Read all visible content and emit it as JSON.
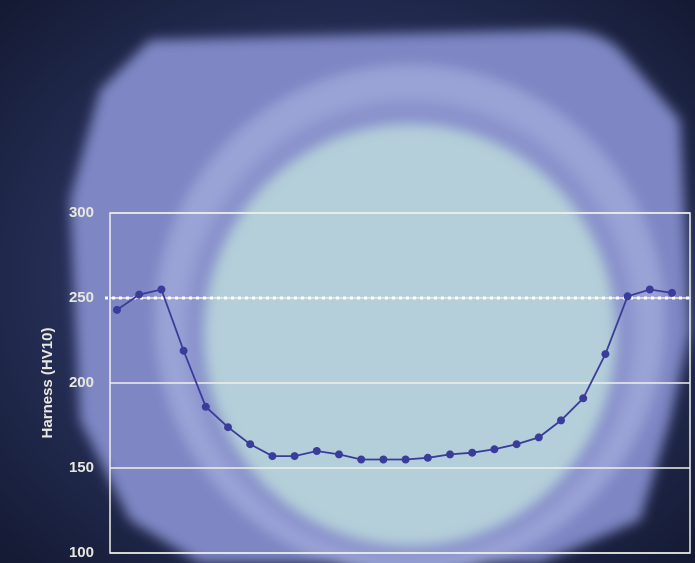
{
  "chart_data": {
    "type": "line",
    "y_label": "Harness (HV10)",
    "categories": [
      null,
      null,
      null,
      null,
      null,
      null,
      null,
      null,
      null,
      null,
      null,
      null,
      null,
      null,
      null,
      null,
      null,
      null,
      null,
      null,
      null,
      null,
      null,
      null,
      null,
      null
    ],
    "series": [
      {
        "color": "#3a3c9c",
        "values": [
          243,
          252,
          255,
          219,
          186,
          174,
          164,
          157,
          157,
          160,
          158,
          155,
          155,
          155,
          156,
          158,
          159,
          161,
          164,
          168,
          178,
          191,
          217,
          251,
          255,
          253
        ]
      }
    ],
    "reference_line": 250,
    "ylim": [
      100,
      300
    ],
    "yticks": [
      100,
      150,
      200,
      250,
      300
    ],
    "grid": true
  }
}
